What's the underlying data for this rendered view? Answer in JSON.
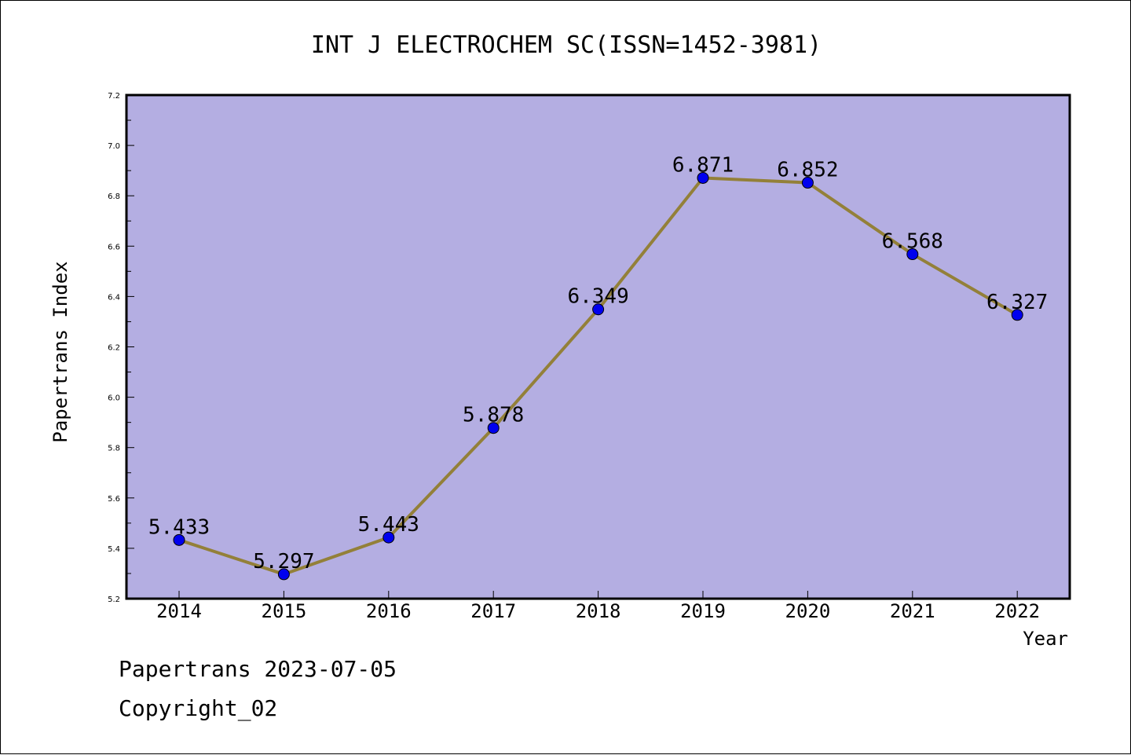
{
  "chart_data": {
    "type": "line",
    "title": "INT J ELECTROCHEM SC(ISSN=1452-3981)",
    "xlabel": "Year",
    "ylabel": "Papertrans Index",
    "categories": [
      "2014",
      "2015",
      "2016",
      "2017",
      "2018",
      "2019",
      "2020",
      "2021",
      "2022"
    ],
    "series": [
      {
        "values": [
          5.433,
          5.297,
          5.443,
          5.878,
          6.349,
          6.871,
          6.852,
          6.568,
          6.327
        ],
        "labels": [
          "5.433",
          "5.297",
          "5.443",
          "5.878",
          "6.349",
          "6.871",
          "6.852",
          "6.568",
          "6.327"
        ]
      }
    ],
    "ylim": [
      5.2,
      7.2
    ],
    "yticks": [
      "5.2",
      "5.4",
      "5.6",
      "5.8",
      "6.0",
      "6.2",
      "6.4",
      "6.6",
      "6.8",
      "7.0",
      "7.2"
    ],
    "grid": false,
    "colors": {
      "plot_background": "#b4aee2",
      "line": "#938039",
      "marker": "#0000ee"
    }
  },
  "footer": {
    "date_line": "Papertrans 2023-07-05",
    "copyright": "Copyright_02"
  }
}
